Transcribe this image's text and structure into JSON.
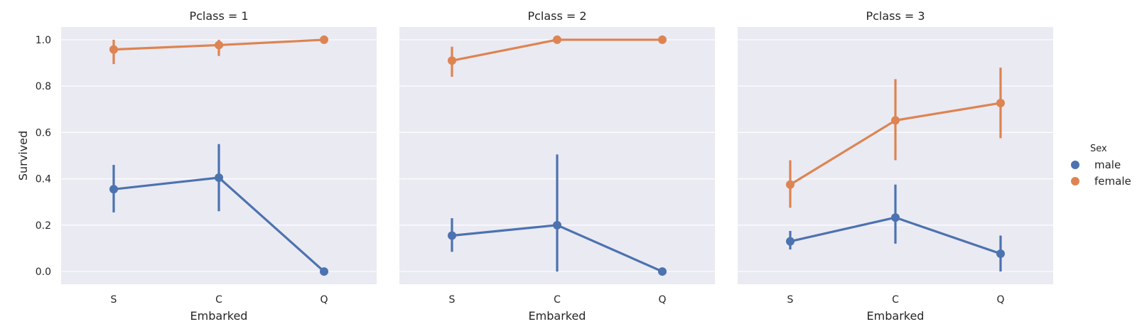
{
  "chart_data": {
    "type": "line",
    "facet_variable": "Pclass",
    "panels": [
      {
        "title": "Pclass = 1",
        "categories": [
          "S",
          "C",
          "Q"
        ],
        "series": [
          {
            "name": "male",
            "values": [
              0.355,
              0.405,
              0.0
            ],
            "ci_low": [
              0.255,
              0.26,
              0.0
            ],
            "ci_high": [
              0.46,
              0.55,
              0.0
            ]
          },
          {
            "name": "female",
            "values": [
              0.958,
              0.977,
              1.0
            ],
            "ci_low": [
              0.895,
              0.93,
              1.0
            ],
            "ci_high": [
              1.0,
              1.0,
              1.0
            ]
          }
        ]
      },
      {
        "title": "Pclass = 2",
        "categories": [
          "S",
          "C",
          "Q"
        ],
        "series": [
          {
            "name": "male",
            "values": [
              0.155,
              0.2,
              0.0
            ],
            "ci_low": [
              0.085,
              0.0,
              0.0
            ],
            "ci_high": [
              0.23,
              0.505,
              0.0
            ]
          },
          {
            "name": "female",
            "values": [
              0.91,
              1.0,
              1.0
            ],
            "ci_low": [
              0.84,
              1.0,
              1.0
            ],
            "ci_high": [
              0.97,
              1.0,
              1.0
            ]
          }
        ]
      },
      {
        "title": "Pclass = 3",
        "categories": [
          "S",
          "C",
          "Q"
        ],
        "series": [
          {
            "name": "male",
            "values": [
              0.13,
              0.233,
              0.077
            ],
            "ci_low": [
              0.095,
              0.12,
              0.0
            ],
            "ci_high": [
              0.175,
              0.375,
              0.155
            ]
          },
          {
            "name": "female",
            "values": [
              0.375,
              0.652,
              0.727
            ],
            "ci_low": [
              0.275,
              0.48,
              0.575
            ],
            "ci_high": [
              0.48,
              0.83,
              0.88
            ]
          }
        ]
      }
    ],
    "xlabel": "Embarked",
    "ylabel": "Survived",
    "ylim": [
      -0.055,
      1.055
    ],
    "yticks": [
      0.0,
      0.2,
      0.4,
      0.6,
      0.8,
      1.0
    ],
    "ytick_labels": [
      "0.0",
      "0.2",
      "0.4",
      "0.6",
      "0.8",
      "1.0"
    ],
    "grid": true,
    "legend": {
      "title": "Sex",
      "placement": "right",
      "entries": [
        {
          "label": "male",
          "color": "#4c72b0"
        },
        {
          "label": "female",
          "color": "#dd8452"
        }
      ]
    }
  }
}
